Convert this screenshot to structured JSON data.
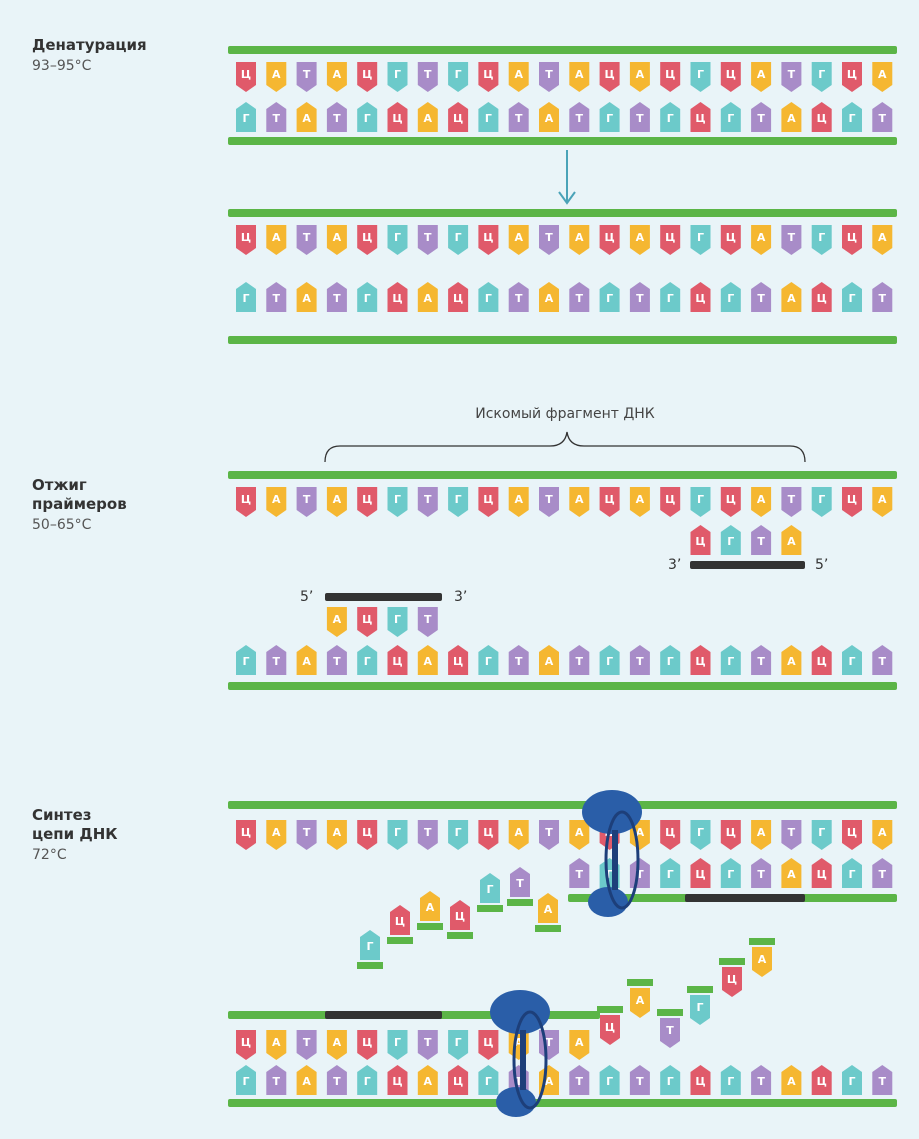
{
  "steps": [
    {
      "name_lines": [
        "Денатурация"
      ],
      "temp": "93–95°C"
    },
    {
      "name_lines": [
        "Отжиг",
        "праймеров"
      ],
      "temp": "50–65°C"
    },
    {
      "name_lines": [
        "Синтез",
        "цепи ДНК"
      ],
      "temp": "72°C"
    }
  ],
  "strand_top": [
    "Ц",
    "А",
    "Т",
    "А",
    "Ц",
    "Г",
    "Т",
    "Г",
    "Ц",
    "А",
    "Т",
    "А",
    "Ц",
    "А",
    "Ц",
    "Г",
    "Ц",
    "А",
    "Т",
    "Г",
    "Ц",
    "А"
  ],
  "strand_bottom": [
    "Г",
    "Т",
    "А",
    "Т",
    "Г",
    "Ц",
    "А",
    "Ц",
    "Г",
    "Т",
    "А",
    "Т",
    "Г",
    "Т",
    "Г",
    "Ц",
    "Г",
    "Т",
    "А",
    "Ц",
    "Г",
    "Т"
  ],
  "fragment_label": "Искомый фрагмент ДНК",
  "primer_1": {
    "bases": [
      "Ц",
      "Г",
      "Т",
      "А"
    ],
    "end_left": "3’",
    "end_right": "5’"
  },
  "primer_2": {
    "bases": [
      "А",
      "Ц",
      "Г",
      "Т"
    ],
    "end_left": "5’",
    "end_right": "3’"
  },
  "free_nucleotides_upper": [
    "Г",
    "Ц",
    "А",
    "Ц",
    "Г",
    "Т",
    "А"
  ],
  "free_nucleotides_lower": [
    "Ц",
    "А",
    "Т",
    "Г",
    "Ц",
    "А"
  ],
  "base_colors": {
    "Ц": "#e05a6a",
    "А": "#f5b731",
    "Т": "#a88cc8",
    "Г": "#6ccaca"
  }
}
